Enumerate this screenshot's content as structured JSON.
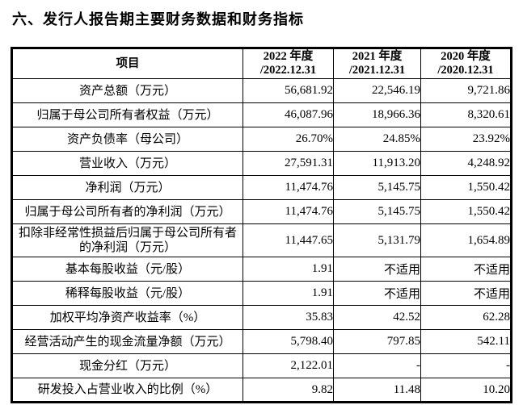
{
  "page": {
    "title": "六、发行人报告期主要财务数据和财务指标"
  },
  "colors": {
    "text": "#000000",
    "border": "#000000",
    "background": "#ffffff"
  },
  "table": {
    "header": {
      "item_label": "项目",
      "columns": [
        {
          "line1": "2022 年度",
          "line2": "/2022.12.31"
        },
        {
          "line1": "2021 年度",
          "line2": "/2021.12.31"
        },
        {
          "line1": "2020 年度",
          "line2": "/2020.12.31"
        }
      ]
    },
    "rows": [
      {
        "label": "资产总额（万元）",
        "values": [
          "56,681.92",
          "22,546.19",
          "9,721.86"
        ]
      },
      {
        "label": "归属于母公司所有者权益（万元）",
        "values": [
          "46,087.96",
          "18,966.36",
          "8,320.61"
        ]
      },
      {
        "label": "资产负债率（母公司）",
        "values": [
          "26.70%",
          "24.85%",
          "23.92%"
        ]
      },
      {
        "label": "营业收入（万元）",
        "values": [
          "27,591.31",
          "11,913.20",
          "4,248.92"
        ]
      },
      {
        "label": "净利润（万元）",
        "values": [
          "11,474.76",
          "5,145.75",
          "1,550.42"
        ]
      },
      {
        "label": "归属于母公司所有者的净利润（万元）",
        "values": [
          "11,474.76",
          "5,145.75",
          "1,550.42"
        ]
      },
      {
        "label": "扣除非经常性损益后归属于母公司所有者的净利润（万元）",
        "values": [
          "11,447.65",
          "5,131.79",
          "1,654.89"
        ]
      },
      {
        "label": "基本每股收益（元/股）",
        "values": [
          "1.91",
          "不适用",
          "不适用"
        ]
      },
      {
        "label": "稀释每股收益（元/股）",
        "values": [
          "1.91",
          "不适用",
          "不适用"
        ]
      },
      {
        "label": "加权平均净资产收益率（%）",
        "values": [
          "35.83",
          "42.52",
          "62.28"
        ]
      },
      {
        "label": "经营活动产生的现金流量净额（万元）",
        "values": [
          "5,798.40",
          "797.85",
          "542.11"
        ]
      },
      {
        "label": "现金分红（万元）",
        "values": [
          "2,122.01",
          "-",
          "-"
        ]
      },
      {
        "label": "研发投入占营业收入的比例（%）",
        "values": [
          "9.82",
          "11.48",
          "10.20"
        ]
      }
    ]
  }
}
